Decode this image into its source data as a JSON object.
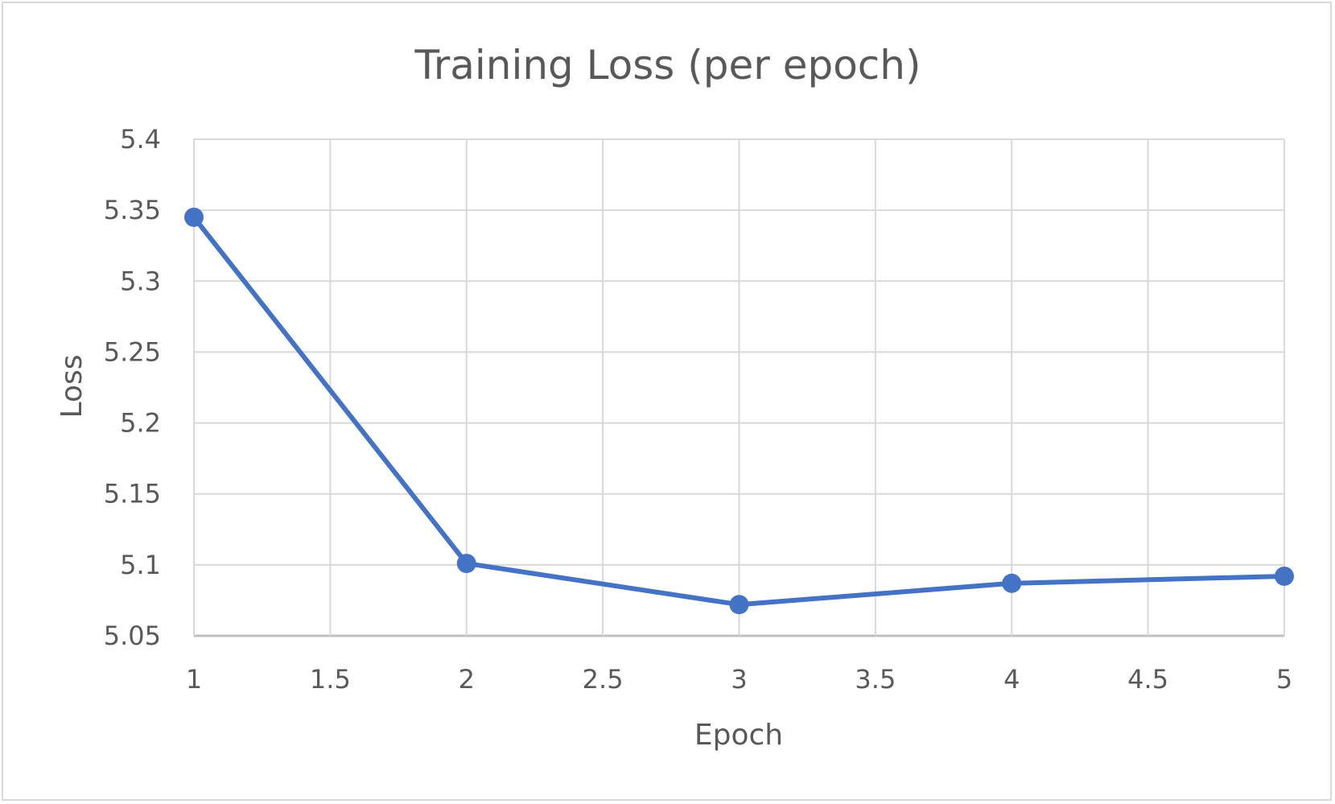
{
  "chart_data": {
    "type": "line",
    "title": "Training Loss (per epoch)",
    "xlabel": "Epoch",
    "ylabel": "Loss",
    "xlim": [
      1,
      5
    ],
    "ylim": [
      5.05,
      5.4
    ],
    "x_ticks": [
      "1",
      "1.5",
      "2",
      "2.5",
      "3",
      "3.5",
      "4",
      "4.5",
      "5"
    ],
    "y_ticks": [
      "5.05",
      "5.1",
      "5.15",
      "5.2",
      "5.25",
      "5.3",
      "5.35",
      "5.4"
    ],
    "grid": true,
    "legend": "none",
    "series": [
      {
        "color": "#4472c4",
        "x": [
          1,
          2,
          3,
          4,
          5
        ],
        "y": [
          5.345,
          5.101,
          5.072,
          5.087,
          5.092
        ]
      }
    ]
  }
}
